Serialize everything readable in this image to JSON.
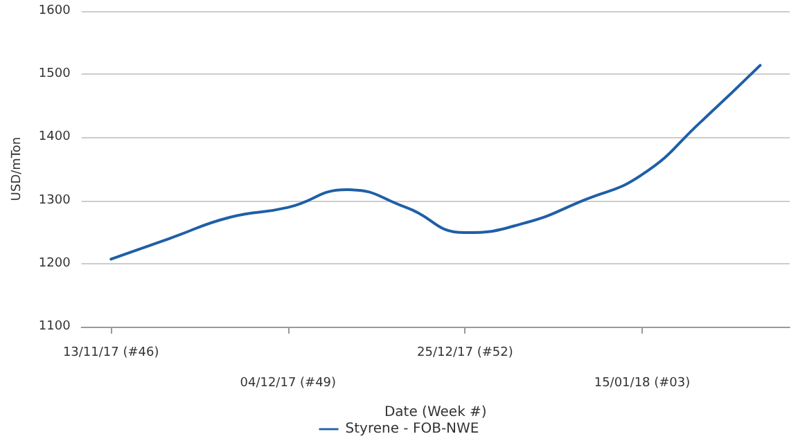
{
  "chart_data": {
    "type": "line",
    "xlabel": "Date (Week #)",
    "ylabel": "USD/mTon",
    "categories": [
      "13/11/17 (#46)",
      null,
      null,
      "04/12/17 (#49)",
      null,
      null,
      "25/12/17 (#52)",
      null,
      null,
      "15/01/18 (#03)",
      null,
      null
    ],
    "series": [
      {
        "name": "Styrene - FOB-NWE",
        "color": "#1f5fa6",
        "values": [
          1207,
          1240,
          1273,
          1289,
          1317,
          1289,
          1249,
          1264,
          1300,
          1341,
          1425,
          1514
        ]
      }
    ],
    "ylim": [
      1100,
      1600
    ],
    "yticks": [
      1100,
      1200,
      1300,
      1400,
      1500,
      1600
    ],
    "grid": "y",
    "legend": "bottom",
    "marker": "none",
    "line_style": "solid"
  }
}
